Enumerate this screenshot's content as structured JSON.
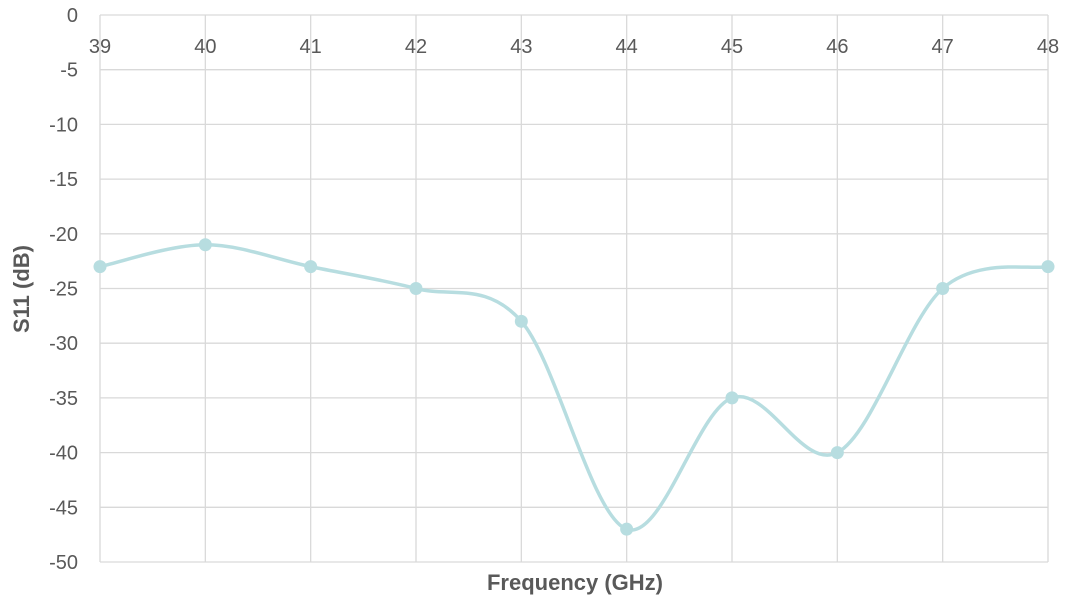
{
  "chart_data": {
    "type": "line",
    "title": "",
    "xlabel": "Frequency (GHz)",
    "ylabel": "S11 (dB)",
    "x": [
      39,
      40,
      41,
      42,
      43,
      44,
      45,
      46,
      47,
      48
    ],
    "series": [
      {
        "values": [
          -23,
          -21,
          -23,
          -25,
          -28,
          -47,
          -35,
          -40,
          -25,
          -23
        ]
      }
    ],
    "xlim": [
      39,
      48
    ],
    "ylim": [
      -50,
      0
    ],
    "x_ticks": [
      "39",
      "40",
      "41",
      "42",
      "43",
      "44",
      "45",
      "46",
      "47",
      "48"
    ],
    "y_ticks": [
      "0",
      "-5",
      "-10",
      "-15",
      "-20",
      "-25",
      "-30",
      "-35",
      "-40",
      "-45",
      "-50"
    ],
    "x_axis_position": "top",
    "grid": true,
    "smooth": true,
    "line_color": "#b7dde0",
    "marker_color": "#b7dde0",
    "grid_color": "#d9d9d9"
  }
}
